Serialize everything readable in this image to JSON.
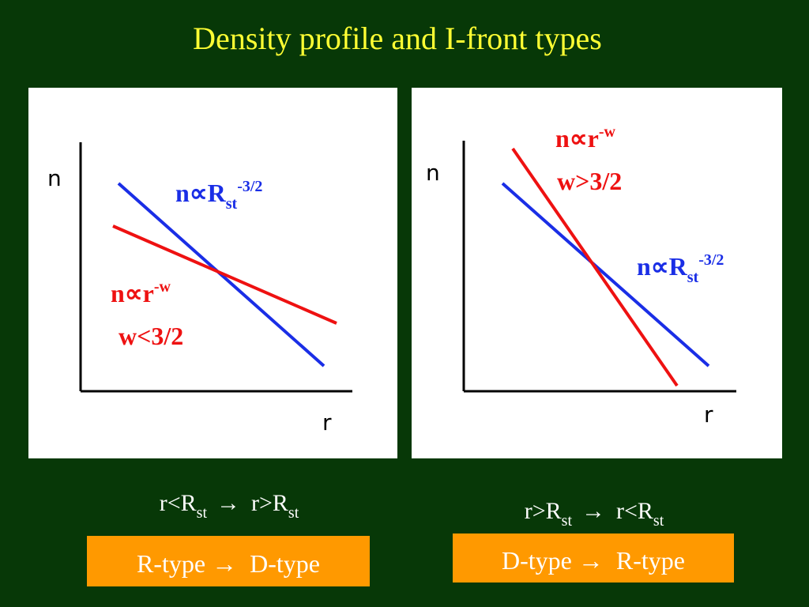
{
  "title": "Density profile and I-front types",
  "panels": [
    {
      "y_label": "n",
      "x_label": "r",
      "blue_label": {
        "base": "n∝R",
        "sub": "st",
        "sup": "-3/2"
      },
      "red_label": {
        "base": "n∝r",
        "sup": "-w"
      },
      "red_condition": "w<3/2",
      "transition": {
        "from": {
          "base": "r<R",
          "sub": "st"
        },
        "arrow": "→",
        "to": {
          "base": "r>R",
          "sub": "st"
        }
      },
      "types": "R-type →  D-type"
    },
    {
      "y_label": "n",
      "x_label": "r",
      "blue_label": {
        "base": "n∝R",
        "sub": "st",
        "sup": "-3/2"
      },
      "red_label": {
        "base": "n∝r",
        "sup": "-w"
      },
      "red_condition": "w>3/2",
      "transition": {
        "from": {
          "base": "r>R",
          "sub": "st"
        },
        "arrow": "→",
        "to": {
          "base": "r<R",
          "sub": "st"
        }
      },
      "types": "D-type →  R-type"
    }
  ]
}
